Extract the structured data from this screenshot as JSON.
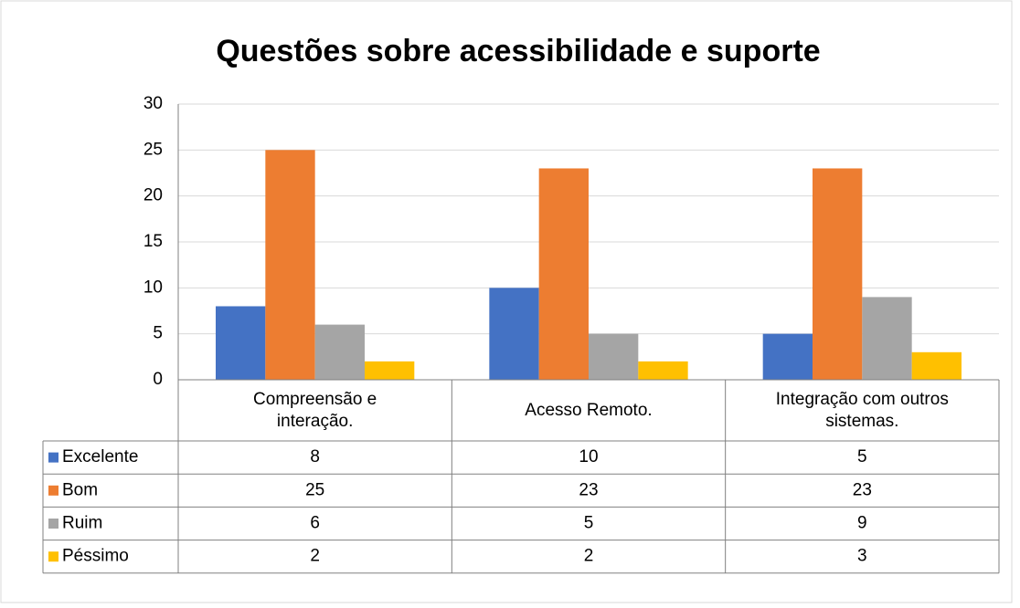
{
  "chart_data": {
    "type": "bar",
    "title": "Questões sobre acessibilidade e suporte",
    "categories": [
      "Compreensão e interação.",
      "Acesso Remoto.",
      "Integração com outros sistemas."
    ],
    "series": [
      {
        "name": "Excelente",
        "color": "#4472c4",
        "values": [
          8,
          10,
          5
        ]
      },
      {
        "name": "Bom",
        "color": "#ed7d31",
        "values": [
          25,
          23,
          23
        ]
      },
      {
        "name": "Ruim",
        "color": "#a5a5a5",
        "values": [
          6,
          5,
          9
        ]
      },
      {
        "name": "Péssimo",
        "color": "#ffc000",
        "values": [
          2,
          2,
          3
        ]
      }
    ],
    "ylim": [
      0,
      30
    ],
    "yticks": [
      0,
      5,
      10,
      15,
      20,
      25,
      30
    ],
    "grid": true
  }
}
